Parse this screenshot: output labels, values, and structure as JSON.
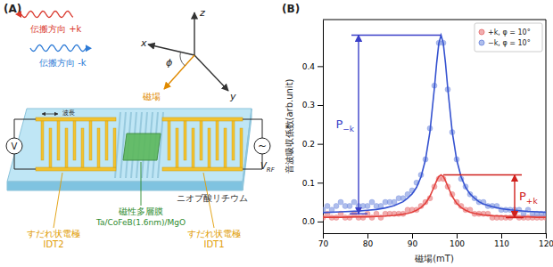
{
  "panel_a": {
    "label": "(A)",
    "waves": [
      {
        "text": "伝搬方向 +k"
      },
      {
        "text": "伝搬方向 -k"
      }
    ],
    "axes": {
      "z": "z",
      "x": "x",
      "y": "y",
      "phi": "ϕ",
      "field": "磁場"
    },
    "wavelength": "波長",
    "voltmeter": "V",
    "rf_source": "~",
    "rf_label": "V",
    "rf_sub": "RF",
    "idt2": [
      "すだれ状電極",
      "IDT2"
    ],
    "idt1": [
      "すだれ状電極",
      "IDT1"
    ],
    "film": [
      "磁性多層膜",
      "Ta/CoFeB(1.6nm)/MgO"
    ],
    "substrate": "ニオブ酸リチウム"
  },
  "chart_data": {
    "type": "scatter",
    "panel_label": "(B)",
    "x_label": "磁場(mT)",
    "y_label": "音波吸収係数(arb.unit)",
    "xlim": [
      70,
      120
    ],
    "xticks": [
      70,
      80,
      90,
      100,
      110,
      120
    ],
    "ylim": [
      -0.03,
      0.52
    ],
    "yticks": [
      {
        "value": 0,
        "label": "0.0"
      },
      0.1,
      0.2,
      0.3,
      0.4
    ],
    "legend": "upper right",
    "series": [
      {
        "name": "+k, φ = 10°",
        "type": "scatter",
        "marker": "circle",
        "color": "#e8787a",
        "x": [
          70,
          71,
          72,
          73,
          74,
          75,
          76,
          77,
          78,
          79,
          80,
          81,
          82,
          83,
          84,
          85,
          86,
          87,
          88,
          89,
          90,
          91,
          92,
          93,
          94,
          95,
          96,
          97,
          98,
          99,
          100,
          101,
          102,
          103,
          104,
          105,
          106,
          107,
          108,
          109,
          110,
          111,
          112,
          113,
          114,
          115,
          116,
          117,
          118,
          119,
          120
        ],
        "values": [
          0.01,
          0.02,
          0.01,
          0.01,
          0.02,
          0.01,
          0.01,
          0.02,
          0.01,
          0.01,
          0.02,
          0.01,
          0.02,
          0.01,
          0.02,
          0.02,
          0.02,
          0.02,
          0.02,
          0.03,
          0.03,
          0.03,
          0.04,
          0.05,
          0.06,
          0.09,
          0.11,
          0.11,
          0.09,
          0.07,
          0.05,
          0.04,
          0.03,
          0.03,
          0.02,
          0.02,
          0.02,
          0.02,
          0.01,
          0.01,
          0.01,
          0.01,
          0.01,
          0.02,
          0.01,
          0.01,
          0.01,
          0.01,
          0.01,
          0.01,
          0.01
        ]
      },
      {
        "name": "−k, φ = 10°",
        "type": "scatter",
        "marker": "circle",
        "color": "#7a92e0",
        "x": [
          70,
          71,
          72,
          73,
          74,
          75,
          76,
          77,
          78,
          79,
          80,
          81,
          82,
          83,
          84,
          85,
          86,
          87,
          88,
          89,
          90,
          91,
          92,
          93,
          94,
          95,
          96,
          97,
          98,
          99,
          100,
          101,
          102,
          103,
          104,
          105,
          106,
          107,
          108,
          109,
          110,
          111,
          112,
          113,
          114,
          115,
          116,
          117,
          118,
          119,
          120
        ],
        "values": [
          0.03,
          0.04,
          0.03,
          0.04,
          0.05,
          0.04,
          0.04,
          0.05,
          0.04,
          0.04,
          0.04,
          0.05,
          0.04,
          0.04,
          0.05,
          0.05,
          0.05,
          0.06,
          0.06,
          0.07,
          0.08,
          0.1,
          0.12,
          0.16,
          0.24,
          0.35,
          0.46,
          0.46,
          0.34,
          0.23,
          0.16,
          0.11,
          0.09,
          0.07,
          0.06,
          0.05,
          0.05,
          0.04,
          0.04,
          0.04,
          0.03,
          0.03,
          0.03,
          0.03,
          0.03,
          0.02,
          0.03,
          0.02,
          0.02,
          0.02,
          0.02
        ]
      },
      {
        "type": "line",
        "line_style": "solid",
        "color": "#e2403c",
        "x": [
          70,
          74,
          78,
          80,
          82,
          84,
          86,
          88,
          89,
          90,
          91,
          92,
          93,
          94,
          95,
          95.5,
          96,
          96.5,
          97,
          97.5,
          98,
          99,
          100,
          101,
          102,
          103,
          104,
          105,
          106,
          108,
          110,
          112,
          114,
          116,
          118,
          120
        ],
        "values": [
          0.011,
          0.011,
          0.012,
          0.012,
          0.013,
          0.014,
          0.016,
          0.019,
          0.021,
          0.024,
          0.029,
          0.036,
          0.047,
          0.065,
          0.091,
          0.105,
          0.116,
          0.12,
          0.116,
          0.105,
          0.091,
          0.065,
          0.047,
          0.036,
          0.029,
          0.024,
          0.021,
          0.019,
          0.017,
          0.015,
          0.014,
          0.013,
          0.012,
          0.012,
          0.011,
          0.011
        ]
      },
      {
        "type": "line",
        "line_style": "solid",
        "color": "#3552d0",
        "x": [
          70,
          74,
          78,
          80,
          82,
          84,
          86,
          88,
          89,
          90,
          91,
          92,
          93,
          94,
          95,
          95.5,
          96,
          96.5,
          97,
          97.5,
          98,
          99,
          100,
          101,
          102,
          103,
          104,
          105,
          106,
          108,
          110,
          112,
          114,
          116,
          118,
          120
        ],
        "values": [
          0.023,
          0.025,
          0.027,
          0.029,
          0.031,
          0.035,
          0.041,
          0.051,
          0.06,
          0.071,
          0.088,
          0.115,
          0.159,
          0.231,
          0.343,
          0.407,
          0.459,
          0.48,
          0.459,
          0.407,
          0.343,
          0.231,
          0.159,
          0.115,
          0.088,
          0.071,
          0.06,
          0.051,
          0.045,
          0.038,
          0.033,
          0.03,
          0.028,
          0.026,
          0.025,
          0.024
        ]
      }
    ],
    "annotations": [
      {
        "text": "P",
        "subscript": "−k",
        "color": "#3a3fc8",
        "x": 78,
        "from": 0.02,
        "to": 0.48,
        "x_end": 96.5
      },
      {
        "text": "P",
        "subscript": "+k",
        "color": "#d0201c",
        "x": 113,
        "from": 0.01,
        "to": 0.12,
        "x_end": 97
      }
    ]
  }
}
